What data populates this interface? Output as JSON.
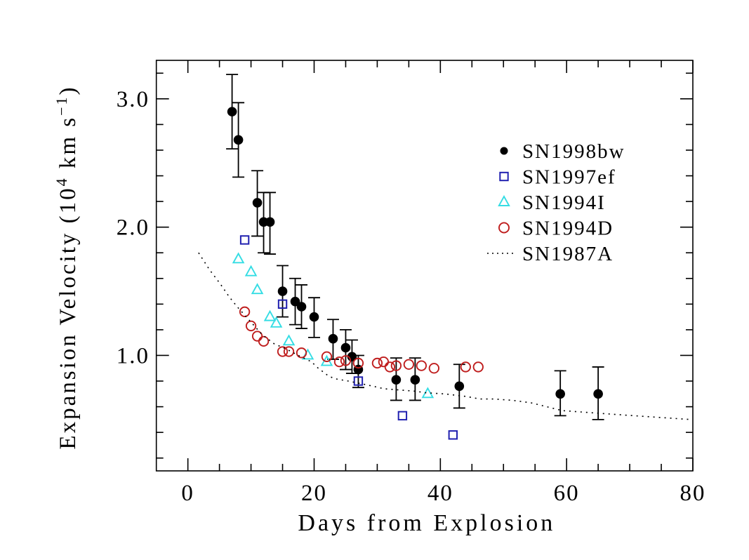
{
  "figure": {
    "background": "#ffffff"
  },
  "chart_data": {
    "type": "scatter",
    "title": "",
    "xlabel": "Days from Explosion",
    "ylabel": "Expansion Velocity (10⁴ km s⁻¹)",
    "ylabel_parts": [
      {
        "text": "Expansion Velocity (10",
        "sup": false
      },
      {
        "text": "4",
        "sup": true
      },
      {
        "text": " km s",
        "sup": false
      },
      {
        "text": "−1",
        "sup": true
      },
      {
        "text": ")",
        "sup": false
      }
    ],
    "xlim": [
      -5,
      80
    ],
    "ylim": [
      0.1,
      3.3
    ],
    "x_major_ticks": [
      0,
      20,
      40,
      60,
      80
    ],
    "x_tick_labels": [
      "0",
      "20",
      "40",
      "60",
      "80"
    ],
    "x_minor_step": 5,
    "y_major_ticks": [
      1.0,
      2.0,
      3.0
    ],
    "y_tick_labels": [
      "1.0",
      "2.0",
      "3.0"
    ],
    "y_minor_step": 0.2,
    "grid": false,
    "legend_position": "upper right",
    "series": [
      {
        "name": "SN1998bw",
        "marker": "filled-circle",
        "color": "#000000",
        "points": [
          [
            7,
            2.9
          ],
          [
            8,
            2.68
          ],
          [
            11,
            2.19
          ],
          [
            12,
            2.04
          ],
          [
            13,
            2.04
          ],
          [
            15,
            1.5
          ],
          [
            17,
            1.42
          ],
          [
            18,
            1.38
          ],
          [
            20,
            1.3
          ],
          [
            23,
            1.13
          ],
          [
            25,
            1.06
          ],
          [
            26,
            0.99
          ],
          [
            27,
            0.89
          ],
          [
            33,
            0.81
          ],
          [
            36,
            0.81
          ],
          [
            43,
            0.76
          ],
          [
            59,
            0.7
          ],
          [
            65,
            0.7
          ]
        ],
        "yerr": [
          [
            0.29,
            0.29
          ],
          [
            0.29,
            0.29
          ],
          [
            0.25,
            0.26
          ],
          [
            0.23,
            0.24
          ],
          [
            0.23,
            0.25
          ],
          [
            0.2,
            0.2
          ],
          [
            0.18,
            0.18
          ],
          [
            0.17,
            0.17
          ],
          [
            0.15,
            0.16
          ],
          [
            0.15,
            0.16
          ],
          [
            0.14,
            0.17
          ],
          [
            0.13,
            0.13
          ],
          [
            0.11,
            0.14
          ],
          [
            0.17,
            0.16
          ],
          [
            0.17,
            0.16
          ],
          [
            0.17,
            0.17
          ],
          [
            0.18,
            0.17
          ],
          [
            0.21,
            0.2
          ]
        ]
      },
      {
        "name": "SN1997ef",
        "marker": "open-square",
        "color": "#2121b0",
        "points": [
          [
            9,
            1.9
          ],
          [
            15,
            1.4
          ],
          [
            27,
            0.8
          ],
          [
            34,
            0.53
          ],
          [
            42,
            0.38
          ]
        ]
      },
      {
        "name": "SN1994I",
        "marker": "open-triangle",
        "color": "#35dde4",
        "points": [
          [
            8,
            1.75
          ],
          [
            10,
            1.65
          ],
          [
            11,
            1.51
          ],
          [
            13,
            1.3
          ],
          [
            14,
            1.25
          ],
          [
            16,
            1.11
          ],
          [
            19,
            1.0
          ],
          [
            22,
            0.95
          ],
          [
            38,
            0.7
          ]
        ]
      },
      {
        "name": "SN1994D",
        "marker": "open-circle",
        "color": "#bf1d1d",
        "points": [
          [
            9,
            1.34
          ],
          [
            10,
            1.23
          ],
          [
            11,
            1.15
          ],
          [
            12,
            1.11
          ],
          [
            15,
            1.03
          ],
          [
            16,
            1.03
          ],
          [
            18,
            1.02
          ],
          [
            22,
            0.99
          ],
          [
            24,
            0.95
          ],
          [
            25,
            0.96
          ],
          [
            27,
            0.94
          ],
          [
            30,
            0.94
          ],
          [
            31,
            0.95
          ],
          [
            32,
            0.91
          ],
          [
            33,
            0.92
          ],
          [
            35,
            0.93
          ],
          [
            37,
            0.92
          ],
          [
            39,
            0.9
          ],
          [
            44,
            0.91
          ],
          [
            46,
            0.91
          ]
        ]
      },
      {
        "name": "SN1987A",
        "marker": "dotted-line",
        "color": "#000000",
        "points": [
          [
            1.7,
            1.8
          ],
          [
            3.4,
            1.67
          ],
          [
            5.1,
            1.56
          ],
          [
            6.5,
            1.46
          ],
          [
            7.8,
            1.38
          ],
          [
            9.8,
            1.27
          ],
          [
            11.8,
            1.16
          ],
          [
            13.7,
            1.09
          ],
          [
            15.6,
            1.05
          ],
          [
            17.5,
            1.0
          ],
          [
            19.6,
            0.95
          ],
          [
            20.4,
            0.91
          ],
          [
            22.0,
            0.85
          ],
          [
            23.1,
            0.82
          ],
          [
            25.4,
            0.8
          ],
          [
            27.4,
            0.78
          ],
          [
            28.4,
            0.77
          ],
          [
            31.1,
            0.74
          ],
          [
            33.7,
            0.73
          ],
          [
            36.3,
            0.72
          ],
          [
            37.4,
            0.71
          ],
          [
            40.7,
            0.7
          ],
          [
            44.1,
            0.68
          ],
          [
            46.3,
            0.66
          ],
          [
            48.5,
            0.66
          ],
          [
            51.5,
            0.65
          ],
          [
            54.4,
            0.63
          ],
          [
            59.3,
            0.57
          ],
          [
            64.8,
            0.55
          ],
          [
            70.7,
            0.53
          ],
          [
            79.8,
            0.5
          ]
        ]
      }
    ],
    "legend": [
      {
        "label": "SN1998bw",
        "text_color": "#000000",
        "marker": "filled-circle",
        "marker_color": "#000000"
      },
      {
        "label": "SN1997ef",
        "text_color": "#2121b0",
        "marker": "open-square",
        "marker_color": "#2121b0"
      },
      {
        "label": "SN1994I",
        "text_color": "#35dde4",
        "marker": "open-triangle",
        "marker_color": "#35dde4"
      },
      {
        "label": "SN1994D",
        "text_color": "#bf1d1d",
        "marker": "open-circle",
        "marker_color": "#bf1d1d"
      },
      {
        "label": "SN1987A",
        "text_color": "#000000",
        "marker": "dotted-line",
        "marker_color": "#000000"
      }
    ]
  }
}
